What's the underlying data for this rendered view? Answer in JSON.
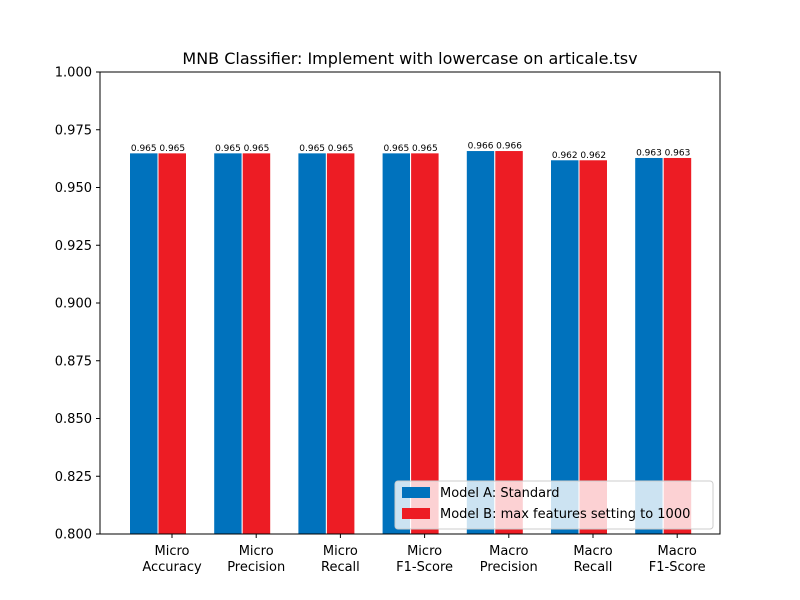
{
  "chart_data": {
    "type": "bar",
    "title": "MNB Classifier: Implement with lowercase on articale.tsv",
    "xlabel": "",
    "ylabel": "",
    "ylim": [
      0.8,
      1.0
    ],
    "yticks": [
      "0.800",
      "0.825",
      "0.850",
      "0.875",
      "0.900",
      "0.925",
      "0.950",
      "0.975",
      "1.000"
    ],
    "categories": [
      [
        "Micro",
        "Accuracy"
      ],
      [
        "Micro",
        "Precision"
      ],
      [
        "Micro",
        "Recall"
      ],
      [
        "Micro",
        "F1-Score"
      ],
      [
        "Macro",
        "Precision"
      ],
      [
        "Macro",
        "Recall"
      ],
      [
        "Macro",
        "F1-Score"
      ]
    ],
    "series": [
      {
        "name": "Model A: Standard",
        "color": "#0072BD",
        "values": [
          0.965,
          0.965,
          0.965,
          0.965,
          0.966,
          0.962,
          0.963
        ],
        "labels": [
          "0.965",
          "0.965",
          "0.965",
          "0.965",
          "0.966",
          "0.962",
          "0.963"
        ]
      },
      {
        "name": "Model B: max features setting to 1000",
        "color": "#ED1C24",
        "values": [
          0.965,
          0.965,
          0.965,
          0.965,
          0.966,
          0.962,
          0.963
        ],
        "labels": [
          "0.965",
          "0.965",
          "0.965",
          "0.965",
          "0.966",
          "0.962",
          "0.963"
        ]
      }
    ],
    "grid": false,
    "legend_position": "bottom-right"
  }
}
